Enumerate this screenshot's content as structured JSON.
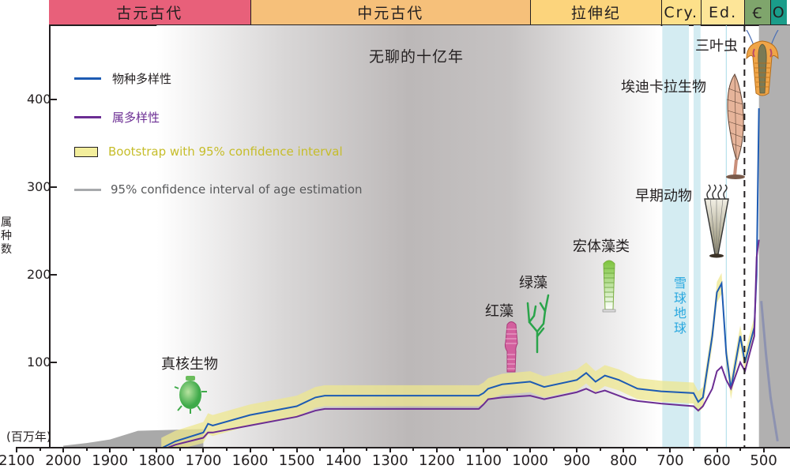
{
  "chart_data": {
    "type": "line",
    "title": "无聊的十亿年",
    "xlabel": "(百万年)",
    "ylabel": "属种数",
    "xlim": [
      2100,
      450
    ],
    "ylim": [
      0,
      470
    ],
    "x_ticks": [
      2100,
      2000,
      1900,
      1800,
      1700,
      1600,
      1500,
      1400,
      1300,
      1200,
      1100,
      1000,
      900,
      800,
      700,
      600,
      500
    ],
    "y_ticks": [
      100,
      200,
      300,
      400
    ],
    "eras": [
      {
        "label": "古元古代",
        "start": 2100,
        "end": 1600,
        "color": "#e8607a"
      },
      {
        "label": "中元古代",
        "start": 1600,
        "end": 1000,
        "color": "#f6c07a"
      },
      {
        "label": "拉伸纪",
        "start": 1000,
        "end": 720,
        "color": "#fcd47c"
      },
      {
        "label": "Cry.",
        "start": 720,
        "end": 635,
        "color": "#fde08a"
      },
      {
        "label": "Ed.",
        "start": 635,
        "end": 541,
        "color": "#fde598"
      },
      {
        "label": "Ꞓ",
        "start": 541,
        "end": 485,
        "color": "#7fa56c"
      },
      {
        "label": "O",
        "start": 485,
        "end": 450,
        "color": "#1a9d8a"
      }
    ],
    "legend": [
      {
        "label": "物种多样性",
        "color": "#1d5bb3",
        "kind": "line"
      },
      {
        "label": "属多样性",
        "color": "#6b2d93",
        "kind": "line"
      },
      {
        "label": "Bootstrap with 95% confidence interval",
        "color": "#c6bd2a",
        "kind": "box"
      },
      {
        "label": "95% confidence interval of age estimation",
        "color": "#a7a9ac",
        "kind": "line"
      }
    ],
    "series": [
      {
        "name": "物种多样性",
        "x": [
          1790,
          1760,
          1700,
          1690,
          1680,
          1600,
          1500,
          1460,
          1440,
          1300,
          1110,
          1100,
          1090,
          1060,
          1000,
          970,
          900,
          880,
          860,
          840,
          810,
          790,
          770,
          720,
          650,
          640,
          630,
          610,
          600,
          590,
          580,
          570,
          560,
          550,
          540,
          530,
          520,
          515,
          510
        ],
        "y": [
          2,
          10,
          20,
          30,
          28,
          40,
          50,
          60,
          62,
          62,
          62,
          65,
          70,
          75,
          78,
          72,
          80,
          88,
          78,
          85,
          80,
          75,
          70,
          67,
          65,
          55,
          60,
          130,
          180,
          190,
          110,
          70,
          100,
          130,
          100,
          120,
          140,
          200,
          390
        ]
      },
      {
        "name": "属多样性",
        "x": [
          1790,
          1760,
          1700,
          1690,
          1680,
          1600,
          1500,
          1460,
          1440,
          1300,
          1110,
          1100,
          1090,
          1060,
          1000,
          970,
          900,
          880,
          860,
          840,
          810,
          790,
          770,
          720,
          650,
          640,
          630,
          610,
          600,
          590,
          580,
          570,
          560,
          550,
          540,
          530,
          520,
          515,
          510
        ],
        "y": [
          0,
          6,
          14,
          20,
          20,
          28,
          38,
          45,
          47,
          47,
          47,
          52,
          58,
          60,
          62,
          58,
          66,
          70,
          65,
          68,
          62,
          58,
          56,
          53,
          50,
          45,
          50,
          70,
          90,
          95,
          80,
          70,
          85,
          100,
          90,
          110,
          130,
          220,
          240
        ]
      }
    ],
    "annotations": [
      {
        "text": "真核生物",
        "x": 1720,
        "y": 105
      },
      {
        "text": "红藻",
        "x": 1060,
        "y": 160
      },
      {
        "text": "绿藻",
        "x": 1005,
        "y": 190
      },
      {
        "text": "宏体藻类",
        "x": 830,
        "y": 240
      },
      {
        "text": "早期动物",
        "x": 620,
        "y": 305
      },
      {
        "text": "埃迪卡拉生物",
        "x": 600,
        "y": 410
      },
      {
        "text": "三叶虫",
        "x": 545,
        "y": 460
      },
      {
        "text": "雪球地球",
        "x": 680,
        "y": 175
      }
    ],
    "snowball_bands": [
      [
        717,
        660
      ],
      [
        650,
        635
      ]
    ],
    "boundary_line_dashed": 541
  },
  "axis": {
    "ylabel_chars": [
      "属",
      "种",
      "数"
    ],
    "unit": "(百万年)"
  },
  "labels": {
    "boring": "无聊的十亿年",
    "eukaryote": "真核生物",
    "red_algae": "红藻",
    "green_algae": "绿藻",
    "macro_algae": "宏体藻类",
    "early_animals": "早期动物",
    "ediacaran": "埃迪卡拉生物",
    "trilobite": "三叶虫",
    "snowball": [
      "雪",
      "球",
      "地",
      "球"
    ]
  }
}
